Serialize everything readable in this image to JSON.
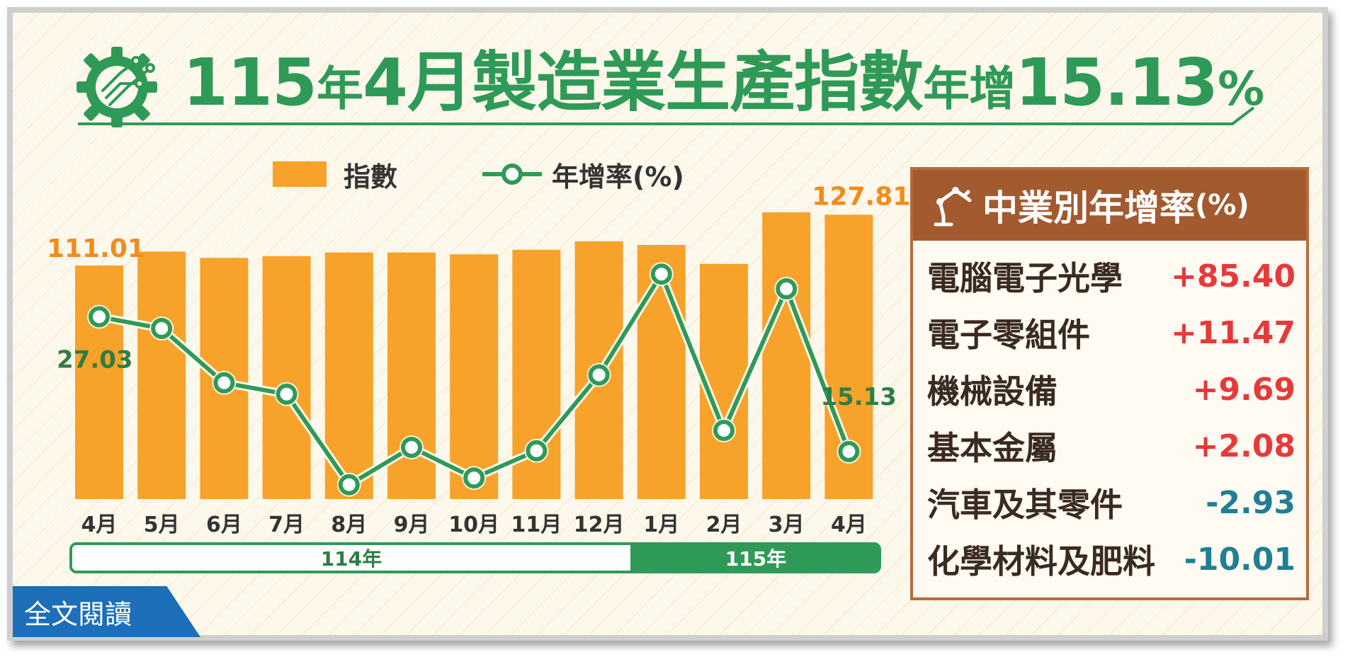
{
  "header": {
    "title_prefix": "115",
    "title_year_char": "年",
    "title_month": "4月",
    "title_main": "製造業生產指數",
    "title_increase": "年增",
    "title_value": "15.13",
    "title_percent": "%"
  },
  "legend": {
    "bar_label": "指數",
    "line_label": "年增率(%)"
  },
  "colors": {
    "bar": "#f7a22a",
    "line": "#2f9a57",
    "bar_label": "#f08c1c",
    "line_label": "#2f7d46",
    "positive": "#e63a3a",
    "negative": "#1f7f94",
    "panel_header": "#a35a2f"
  },
  "chart_data": {
    "type": "bar",
    "categories": [
      "4月",
      "5月",
      "6月",
      "7月",
      "8月",
      "9月",
      "10月",
      "11月",
      "12月",
      "1月",
      "2月",
      "3月",
      "4月"
    ],
    "series": [
      {
        "name": "指數",
        "type": "bar",
        "values": [
          111.01,
          115.6,
          113.5,
          114.1,
          115.3,
          115.3,
          114.7,
          116.2,
          119.0,
          117.8,
          111.5,
          128.6,
          127.81
        ]
      },
      {
        "name": "年增率(%)",
        "type": "line",
        "values": [
          27.03,
          26.0,
          21.2,
          20.2,
          12.2,
          15.5,
          12.8,
          15.2,
          21.9,
          30.8,
          17.0,
          29.5,
          15.13
        ]
      }
    ],
    "data_labels": {
      "bar_first": "111.01",
      "bar_last": "127.81",
      "line_first": "27.03",
      "line_last": "15.13"
    },
    "year_groups": [
      {
        "label": "114年",
        "span": 9
      },
      {
        "label": "115年",
        "span": 4
      }
    ],
    "grid": false,
    "legend_position": "top"
  },
  "side_panel": {
    "title": "中業別年增率",
    "title_unit": "(%)",
    "items": [
      {
        "name": "電腦電子光學",
        "value": "+85.40",
        "sign": "pos"
      },
      {
        "name": "電子零組件",
        "value": "+11.47",
        "sign": "pos"
      },
      {
        "name": "機械設備",
        "value": "+9.69",
        "sign": "pos"
      },
      {
        "name": "基本金屬",
        "value": "+2.08",
        "sign": "pos"
      },
      {
        "name": "汽車及其零件",
        "value": "-2.93",
        "sign": "neg"
      },
      {
        "name": "化學材料及肥料",
        "value": "-10.01",
        "sign": "neg"
      }
    ]
  },
  "footer": {
    "read_full_label": "全文閱讀"
  }
}
